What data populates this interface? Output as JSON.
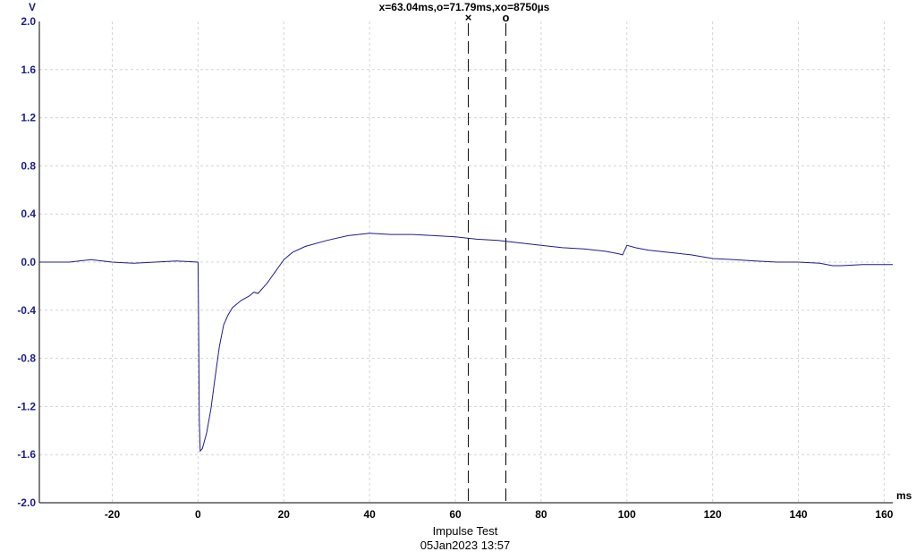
{
  "cursor_readout": "x=63.04ms,o=71.79ms,xo=8750µs",
  "footer": {
    "title": "Impulse Test",
    "timestamp": "05Jan2023  13:57"
  },
  "colors": {
    "trace": "#1c1c8c",
    "axis_text": "#1c1c8c",
    "grid": "#d4d4d4"
  },
  "cursors": [
    {
      "symbol": "×",
      "x": 63.04
    },
    {
      "symbol": "o",
      "x": 71.79
    }
  ],
  "chart_data": {
    "type": "line",
    "title": "",
    "xlabel": "ms",
    "ylabel": "V",
    "xlim": [
      -37,
      162
    ],
    "ylim": [
      -2.0,
      2.0
    ],
    "x_ticks": [
      -20,
      0,
      20,
      40,
      60,
      80,
      100,
      120,
      140,
      160
    ],
    "y_ticks": [
      "2.0",
      "1.6",
      "1.2",
      "0.8",
      "0.4",
      "0.0",
      "-0.4",
      "-0.8",
      "-1.2",
      "-1.6",
      "-2.0"
    ],
    "grid": true,
    "series": [
      {
        "x": [
          -37,
          -30,
          -25,
          -20,
          -15,
          -10,
          -5,
          0,
          0.1,
          0.3,
          0.5,
          1,
          2,
          3,
          4,
          5,
          6,
          7,
          8,
          9,
          10,
          11,
          12,
          13,
          14,
          15,
          16,
          17,
          18,
          19,
          20,
          22,
          25,
          30,
          35,
          40,
          45,
          50,
          55,
          60,
          65,
          70,
          75,
          80,
          85,
          90,
          95,
          98,
          99,
          100,
          102,
          105,
          110,
          115,
          120,
          125,
          130,
          135,
          140,
          145,
          148,
          150,
          155,
          160,
          162
        ],
        "y": [
          0.0,
          0.0,
          0.02,
          0.0,
          -0.01,
          0.0,
          0.01,
          0.0,
          -0.4,
          -1.3,
          -1.57,
          -1.55,
          -1.42,
          -1.22,
          -0.95,
          -0.7,
          -0.52,
          -0.44,
          -0.38,
          -0.35,
          -0.32,
          -0.3,
          -0.28,
          -0.25,
          -0.26,
          -0.22,
          -0.18,
          -0.13,
          -0.08,
          -0.03,
          0.02,
          0.08,
          0.13,
          0.18,
          0.22,
          0.24,
          0.23,
          0.23,
          0.22,
          0.21,
          0.19,
          0.18,
          0.16,
          0.14,
          0.12,
          0.11,
          0.09,
          0.07,
          0.06,
          0.14,
          0.12,
          0.1,
          0.08,
          0.06,
          0.03,
          0.02,
          0.01,
          0.0,
          0.0,
          -0.01,
          -0.03,
          -0.03,
          -0.02,
          -0.02,
          -0.02
        ]
      }
    ]
  }
}
